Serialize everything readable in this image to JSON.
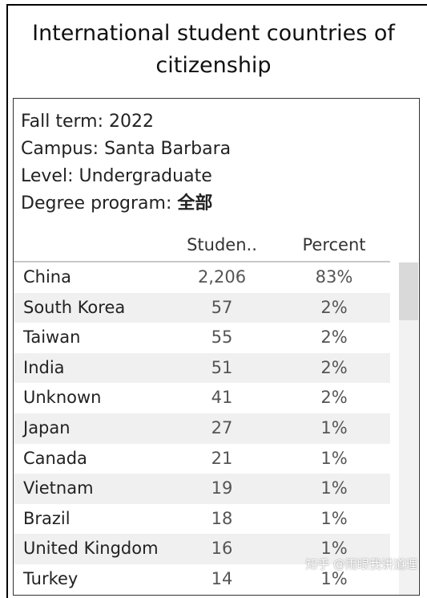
{
  "title": "International student countries of citizenship",
  "filters": [
    {
      "label": "Fall term:",
      "value": "2022"
    },
    {
      "label": "Campus:",
      "value": "Santa Barbara"
    },
    {
      "label": "Level:",
      "value": "Undergraduate"
    },
    {
      "label": "Degree program:",
      "value": "全部"
    }
  ],
  "columns": {
    "students": "Studen..",
    "percent": "Percent"
  },
  "rows": [
    {
      "country": "China",
      "students": "2,206",
      "percent": "83%"
    },
    {
      "country": "South Korea",
      "students": "57",
      "percent": "2%"
    },
    {
      "country": "Taiwan",
      "students": "55",
      "percent": "2%"
    },
    {
      "country": "India",
      "students": "51",
      "percent": "2%"
    },
    {
      "country": "Unknown",
      "students": "41",
      "percent": "2%"
    },
    {
      "country": "Japan",
      "students": "27",
      "percent": "1%"
    },
    {
      "country": "Canada",
      "students": "21",
      "percent": "1%"
    },
    {
      "country": "Vietnam",
      "students": "19",
      "percent": "1%"
    },
    {
      "country": "Brazil",
      "students": "18",
      "percent": "1%"
    },
    {
      "country": "United Kingdom",
      "students": "16",
      "percent": "1%"
    },
    {
      "country": "Turkey",
      "students": "14",
      "percent": "1%"
    }
  ],
  "watermark": "知乎 @雨眼我讲道理"
}
